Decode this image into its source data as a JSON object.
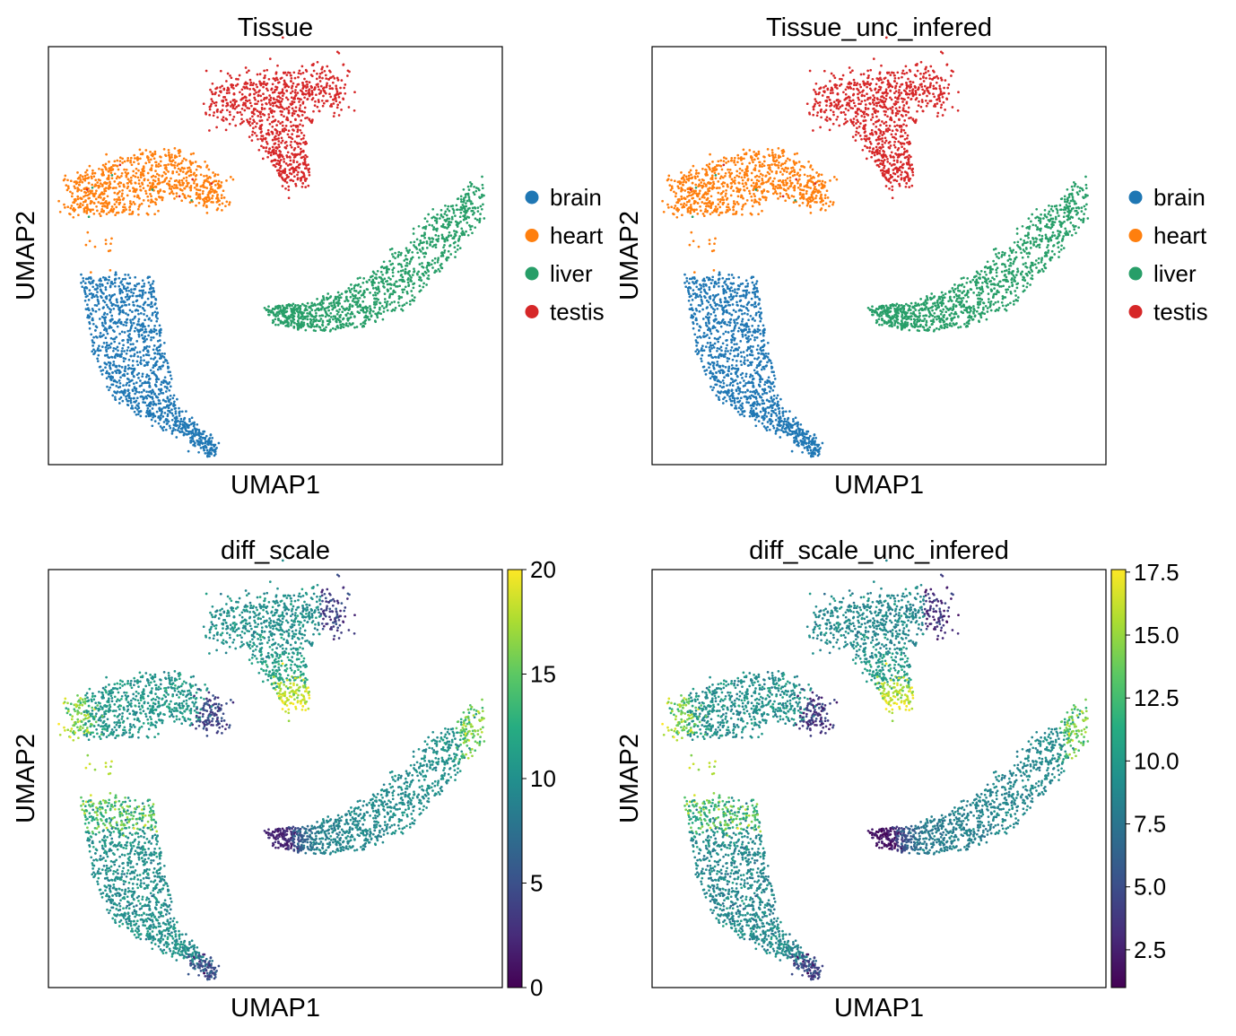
{
  "chart_data": [
    {
      "type": "scatter",
      "title": "Tissue",
      "xlabel": "UMAP1",
      "ylabel": "UMAP2",
      "color_mode": "categorical",
      "legend_position": "right",
      "legend": [
        {
          "name": "brain",
          "color": "#1f77b4"
        },
        {
          "name": "heart",
          "color": "#ff7f0e"
        },
        {
          "name": "liver",
          "color": "#279e68"
        },
        {
          "name": "testis",
          "color": "#d62728"
        }
      ]
    },
    {
      "type": "scatter",
      "title": "Tissue_unc_infered",
      "xlabel": "UMAP1",
      "ylabel": "UMAP2",
      "color_mode": "categorical",
      "legend_position": "right",
      "legend": [
        {
          "name": "brain",
          "color": "#1f77b4"
        },
        {
          "name": "heart",
          "color": "#ff7f0e"
        },
        {
          "name": "liver",
          "color": "#279e68"
        },
        {
          "name": "testis",
          "color": "#d62728"
        }
      ]
    },
    {
      "type": "scatter",
      "title": "diff_scale",
      "xlabel": "UMAP1",
      "ylabel": "UMAP2",
      "color_mode": "continuous",
      "colormap": "viridis",
      "colorbar_range": [
        0,
        20
      ],
      "colorbar_ticks": [
        "0",
        "5",
        "10",
        "15",
        "20"
      ]
    },
    {
      "type": "scatter",
      "title": "diff_scale_unc_infered",
      "xlabel": "UMAP1",
      "ylabel": "UMAP2",
      "color_mode": "continuous",
      "colormap": "viridis",
      "colorbar_range": [
        1.0,
        17.6
      ],
      "colorbar_ticks": [
        "2.5",
        "5.0",
        "7.5",
        "10.0",
        "12.5",
        "15.0",
        "17.5"
      ]
    }
  ]
}
